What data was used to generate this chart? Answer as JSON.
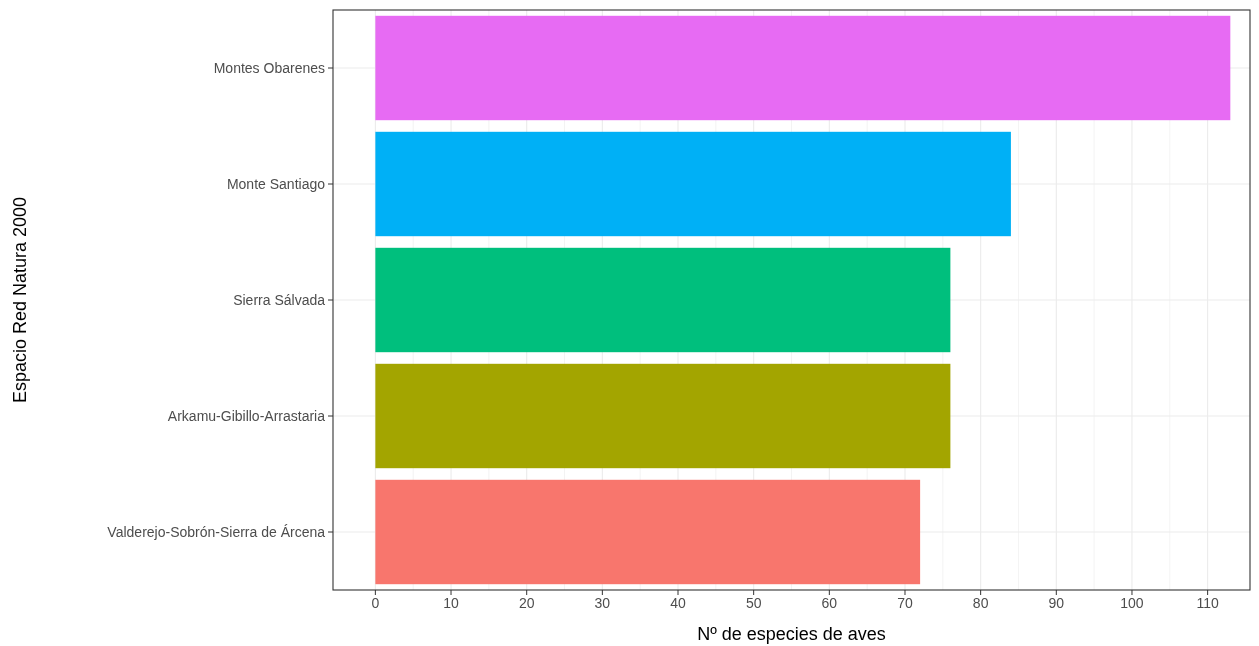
{
  "chart_data": {
    "type": "bar",
    "orientation": "horizontal",
    "xlabel": "Nº de especies de aves",
    "ylabel": "Espacio Red Natura 2000",
    "categories": [
      "Montes Obarenes",
      "Monte Santiago",
      "Sierra Sálvada",
      "Arkamu-Gibillo-Arrastaria",
      "Valderejo-Sobrón-Sierra de Árcena"
    ],
    "values": [
      113,
      84,
      76,
      76,
      72
    ],
    "colors": [
      "#e76bf3",
      "#00b0f6",
      "#00bf7d",
      "#a3a500",
      "#f8766d"
    ],
    "xlim": [
      -5.6,
      115.6
    ],
    "xticks": [
      0,
      10,
      20,
      30,
      40,
      50,
      60,
      70,
      80,
      90,
      100,
      110
    ],
    "grid": true
  }
}
